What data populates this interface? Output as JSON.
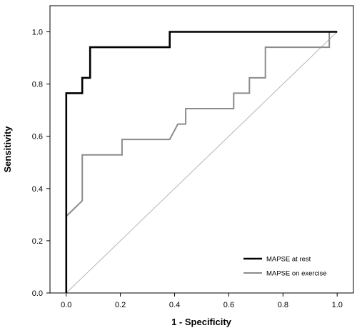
{
  "chart_data": {
    "type": "line",
    "title": "",
    "xlabel": "1 - Specificity",
    "ylabel": "Sensitivity",
    "xlim": [
      -0.06,
      1.06
    ],
    "ylim": [
      0,
      1.1
    ],
    "xticks": [
      "0.0",
      "0.2",
      "0.4",
      "0.6",
      "0.8",
      "1.0"
    ],
    "yticks": [
      "0.0",
      "0.2",
      "0.4",
      "0.6",
      "0.8",
      "1.0"
    ],
    "grid": false,
    "legend_position": "bottom-right",
    "series": [
      {
        "name": "MAPSE at rest",
        "color": "#000000",
        "points": [
          [
            0.0,
            0.0
          ],
          [
            0.0,
            0.765
          ],
          [
            0.059,
            0.765
          ],
          [
            0.059,
            0.824
          ],
          [
            0.088,
            0.824
          ],
          [
            0.088,
            0.941
          ],
          [
            0.382,
            0.941
          ],
          [
            0.382,
            1.0
          ],
          [
            1.0,
            1.0
          ]
        ]
      },
      {
        "name": "MAPSE on exercise",
        "color": "#8c8c8c",
        "points": [
          [
            0.0,
            0.0
          ],
          [
            0.0,
            0.294
          ],
          [
            0.059,
            0.353
          ],
          [
            0.059,
            0.529
          ],
          [
            0.206,
            0.529
          ],
          [
            0.206,
            0.588
          ],
          [
            0.382,
            0.588
          ],
          [
            0.412,
            0.647
          ],
          [
            0.441,
            0.647
          ],
          [
            0.441,
            0.706
          ],
          [
            0.618,
            0.706
          ],
          [
            0.618,
            0.765
          ],
          [
            0.676,
            0.765
          ],
          [
            0.676,
            0.824
          ],
          [
            0.735,
            0.824
          ],
          [
            0.735,
            0.941
          ],
          [
            0.971,
            0.941
          ],
          [
            0.971,
            1.0
          ],
          [
            1.0,
            1.0
          ]
        ]
      },
      {
        "name": "",
        "color": "#b5b5b5",
        "points": [
          [
            0.0,
            0.0
          ],
          [
            1.0,
            1.0
          ]
        ]
      }
    ]
  }
}
